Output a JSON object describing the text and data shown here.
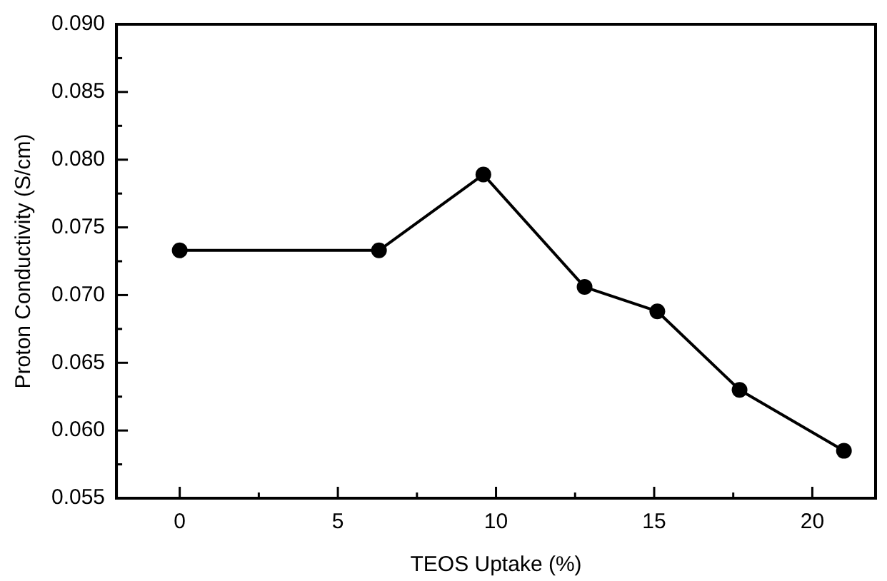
{
  "chart_data": {
    "type": "line",
    "xlabel": "TEOS Uptake (%)",
    "ylabel": "Proton Conductivity (S/cm)",
    "x": [
      0,
      6.3,
      9.6,
      12.8,
      15.1,
      17.7,
      21.0
    ],
    "series": [
      {
        "color": "#000000",
        "values": [
          0.0733,
          0.0733,
          0.0789,
          0.0706,
          0.0688,
          0.063,
          0.0585
        ]
      }
    ],
    "xlim": [
      -2,
      22
    ],
    "xticks": [
      0,
      {
        "value": 2.5,
        "label": null
      },
      5,
      {
        "value": 7.5,
        "label": null
      },
      10,
      {
        "value": 12.5,
        "label": null
      },
      15,
      {
        "value": 17.5,
        "label": null
      },
      20
    ],
    "ylim": [
      0.055,
      0.09
    ],
    "yticks": [
      0.055,
      {
        "value": 0.0575,
        "label": null
      },
      {
        "value": 0.06,
        "label": "0.060"
      },
      {
        "value": 0.0625,
        "label": null
      },
      0.065,
      {
        "value": 0.0675,
        "label": null
      },
      {
        "value": 0.07,
        "label": "0.070"
      },
      {
        "value": 0.0725,
        "label": null
      },
      0.075,
      {
        "value": 0.0775,
        "label": null
      },
      {
        "value": 0.08,
        "label": "0.080"
      },
      {
        "value": 0.0825,
        "label": null
      },
      0.085,
      {
        "value": 0.0875,
        "label": null
      },
      {
        "value": 0.09,
        "label": "0.090"
      }
    ],
    "grid": false,
    "legend": false,
    "marker": "circle",
    "line_style": "solid"
  }
}
